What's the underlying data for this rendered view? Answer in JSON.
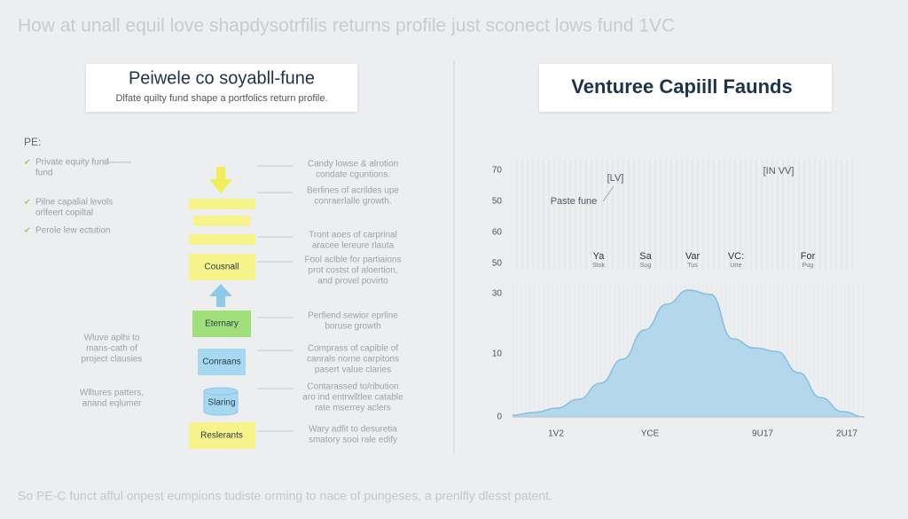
{
  "header": {
    "title": "How at unall equil love shapdysotrfilis returns profile just sconect lows fund 1VC"
  },
  "left_panel": {
    "title": "Peiwele co soyabll-fune",
    "subtitle": "Dlfate quilty fund shape a portfolics return profile.",
    "list_heading": "PE:",
    "list": [
      {
        "lines": [
          "Private equity fund",
          "fund"
        ]
      },
      {
        "lines": [
          "Pilne capalial levols",
          "orlfeert copiltal"
        ]
      },
      {
        "lines": [
          "Perole lew ectution"
        ]
      }
    ],
    "flow": [
      "Cousnall",
      "Eternary",
      "Conraans",
      "Slaring",
      "Reslerants"
    ],
    "right_notes": [
      {
        "lines": [
          "Candy lowse & alrotion",
          "condate cguntions."
        ]
      },
      {
        "lines": [
          "Berlines of acrildes upe",
          "conraerlalle growth."
        ]
      },
      {
        "lines": [
          "Tront aoes of carprinal",
          "aracee lereure rlauta"
        ]
      },
      {
        "lines": [
          "Fool aclble for partiaions",
          "prot costst of aloertion,",
          "and provel povirto"
        ]
      },
      {
        "lines": [
          "Perfiend sewior eprline",
          "boruse growth"
        ]
      },
      {
        "lines": [
          "Comprass of capible of",
          "canrals norne carpitons",
          "pasert value claries"
        ]
      },
      {
        "lines": [
          "Contarassed to/ribution",
          "aro ind entrwlltlee catable",
          "rate mserrey aclers"
        ]
      },
      {
        "lines": [
          "Wary adfit to desuretia",
          "smatory sooi rale edify"
        ]
      }
    ],
    "left_notes": [
      {
        "lines": [
          "Wluve aplhi to",
          "mans-cath of",
          "project clausies"
        ]
      },
      {
        "lines": [
          "Wlltures patters,",
          "anand eqlumer"
        ]
      }
    ]
  },
  "right_panel": {
    "title": "Venturee Capiill Faunds"
  },
  "chart_data": {
    "type": "area",
    "color": "#a9d4ec",
    "ylim": [
      0,
      70
    ],
    "values": [
      0.5,
      1.3,
      2.5,
      5,
      9.6,
      16.4,
      24.7,
      32,
      36,
      34.8,
      22.2,
      19.6,
      18.6,
      12.6,
      5.5,
      1.5,
      0
    ],
    "yaxis_labels": [
      "70",
      "50",
      "60",
      "50",
      "30",
      "10",
      "0"
    ],
    "xaxis_labels": [
      "1V2",
      "YCE",
      "9U17",
      "2U17"
    ],
    "annotations": [
      "[LV]",
      "[IN VV]",
      "Paste fune"
    ],
    "columns": [
      {
        "label": "Ya",
        "sub": "Stok"
      },
      {
        "label": "Sa",
        "sub": "Sug"
      },
      {
        "label": "Var",
        "sub": "Tus"
      },
      {
        "label": "VC:",
        "sub": "Urte"
      },
      {
        "label": "For",
        "sub": "Pug"
      }
    ]
  },
  "footer": {
    "text": "So PE-C funct afful onpest eumpions tudiste orming to nace of pungeses, a prenlfly dlesst patent."
  }
}
